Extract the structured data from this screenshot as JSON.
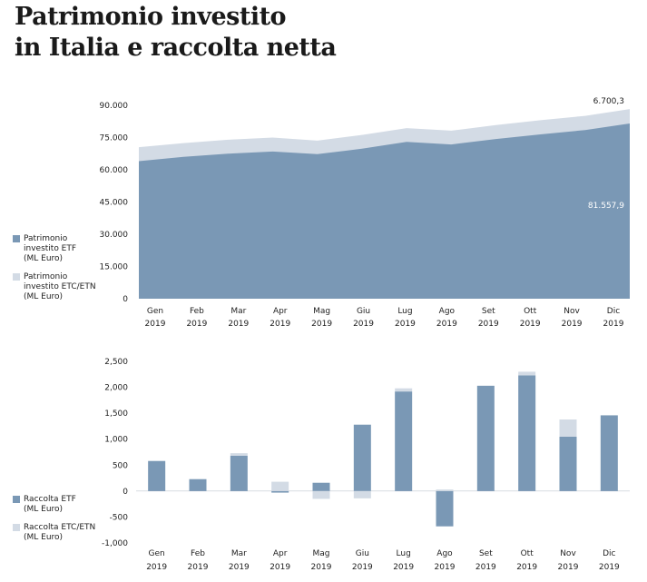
{
  "title": {
    "line1": "Patrimonio investito",
    "line2": "in Italia e raccolta netta"
  },
  "colors": {
    "etf": "#7a98b5",
    "etc": "#d3dbe5",
    "axis_text": "#222222"
  },
  "chart_data": [
    {
      "type": "area",
      "stacked": true,
      "categories": [
        "Gen\n2019",
        "Feb\n2019",
        "Mar\n2019",
        "Apr\n2019",
        "Mag\n2019",
        "Giu\n2019",
        "Lug\n2019",
        "Ago\n2019",
        "Set\n2019",
        "Ott\n2019",
        "Nov\n2019",
        "Dic\n2019"
      ],
      "y_ticks": [
        "0",
        "15.000",
        "30.000",
        "45.000",
        "60.000",
        "75.000",
        "90.000"
      ],
      "ylim": [
        0,
        90000
      ],
      "series": [
        {
          "name": "Patrimonio investito ETF (ML Euro)",
          "color": "#7a98b5",
          "values": [
            64000,
            66000,
            67500,
            68500,
            67300,
            69800,
            73000,
            71800,
            74300,
            76500,
            78500,
            81557.9
          ]
        },
        {
          "name": "Patrimonio investito ETC/ETN (ML Euro)",
          "color": "#d3dbe5",
          "values": [
            6500,
            6400,
            6500,
            6500,
            6300,
            6400,
            6400,
            6400,
            6500,
            6600,
            6600,
            6700.3
          ]
        }
      ],
      "annotations": [
        "6.700,3",
        "81.557,9"
      ]
    },
    {
      "type": "bar",
      "stacked": true,
      "categories": [
        "Gen\n2019",
        "Feb\n2019",
        "Mar\n2019",
        "Apr\n2019",
        "Mag\n2019",
        "Giu\n2019",
        "Lug\n2019",
        "Ago\n2019",
        "Set\n2019",
        "Ott\n2019",
        "Nov\n2019",
        "Dic\n2019"
      ],
      "y_ticks": [
        "-1,000",
        "-500",
        "0",
        "500",
        "1,000",
        "1,500",
        "2,000",
        "2,500"
      ],
      "ylim": [
        -1000,
        2500
      ],
      "series": [
        {
          "name": "Raccolta ETF (ML Euro)",
          "color": "#7a98b5",
          "values": [
            580,
            230,
            680,
            -30,
            160,
            1280,
            1920,
            -680,
            2030,
            2230,
            1050,
            1460
          ]
        },
        {
          "name": "Raccolta ETC/ETN (ML Euro)",
          "color": "#d3dbe5",
          "values": [
            0,
            0,
            50,
            180,
            -150,
            -140,
            60,
            30,
            0,
            70,
            330,
            0
          ]
        }
      ]
    }
  ],
  "legend_top": [
    {
      "label": "Patrimonio\ninvestito ETF\n(ML Euro)",
      "color": "#7a98b5"
    },
    {
      "label": "Patrimonio\ninvestito ETC/ETN\n(ML Euro)",
      "color": "#d3dbe5"
    }
  ],
  "legend_bottom": [
    {
      "label": "Raccolta ETF\n(ML Euro)",
      "color": "#7a98b5"
    },
    {
      "label": "Raccolta ETC/ETN\n(ML Euro)",
      "color": "#d3dbe5"
    }
  ]
}
